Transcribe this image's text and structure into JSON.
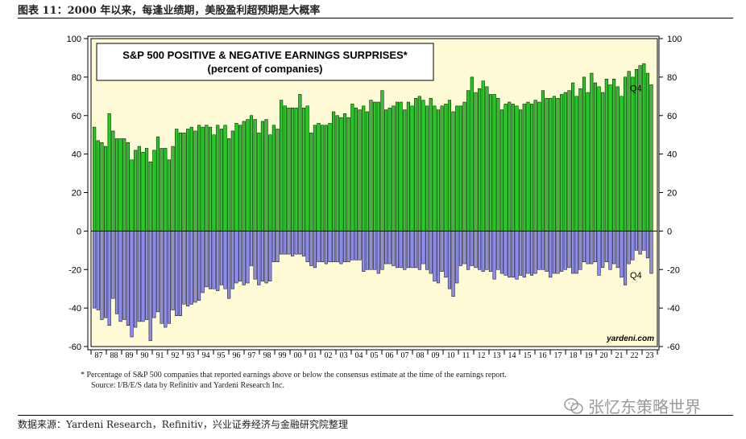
{
  "figure_title": "图表 11：2000 年以来，每逢业绩期，美股盈利超预期是大概率",
  "footnote_1": "*   Percentage of S&P 500 companies that reported earnings above or below the consensus estimate at the time of the earnings report.",
  "footnote_2": "Source: I/B/E/S data by Refinitiv and Yardeni Research Inc.",
  "source_line": "数据来源：Yardeni Research，Refinitiv，兴业证券经济与金融研究院整理",
  "watermark": "张忆东策略世界",
  "colors": {
    "positive": "#22cc22",
    "negative": "#8d8df0",
    "plot_bg": "#fffbd6"
  },
  "chart_data": {
    "type": "bar",
    "title": "S&P 500 POSITIVE & NEGATIVE EARNINGS SURPRISES*",
    "subtitle": "(percent of companies)",
    "brand": "yardeni.com",
    "ylim": [
      -60,
      100
    ],
    "yticks": [
      100,
      80,
      60,
      40,
      20,
      0,
      -20,
      -40,
      -60
    ],
    "x_labels": [
      "87",
      "88",
      "89",
      "90",
      "91",
      "92",
      "93",
      "94",
      "95",
      "96",
      "97",
      "98",
      "99",
      "00",
      "01",
      "02",
      "03",
      "04",
      "05",
      "06",
      "07",
      "08",
      "09",
      "10",
      "11",
      "12",
      "13",
      "14",
      "15",
      "16",
      "17",
      "18",
      "19",
      "20",
      "21",
      "22",
      "23"
    ],
    "annotations": [
      {
        "text": "Q4",
        "series": "positive"
      },
      {
        "text": "Q4",
        "series": "negative"
      }
    ],
    "grid": false,
    "series": [
      {
        "key": "positive",
        "values": [
          54,
          47,
          46,
          44,
          61,
          52,
          48,
          48,
          48,
          46,
          37,
          42,
          44,
          41,
          43,
          36,
          42,
          49,
          43,
          43,
          37,
          44,
          53,
          51,
          51,
          53,
          54,
          52,
          55,
          54,
          55,
          54,
          50,
          55,
          53,
          55,
          48,
          52,
          56,
          55,
          57,
          58,
          60,
          58,
          51,
          57,
          58,
          50,
          55,
          53,
          68,
          65,
          64,
          64,
          64,
          71,
          64,
          65,
          51,
          55,
          56,
          55,
          55,
          56,
          62,
          60,
          59,
          61,
          59,
          66,
          64,
          63,
          65,
          62,
          68,
          67,
          67,
          73,
          63,
          64,
          65,
          67,
          67,
          63,
          67,
          65,
          69,
          70,
          68,
          65,
          69,
          65,
          63,
          65,
          66,
          68,
          62,
          65,
          65,
          67,
          73,
          80,
          72,
          74,
          78,
          75,
          71,
          71,
          69,
          63,
          66,
          67,
          66,
          65,
          63,
          66,
          67,
          66,
          68,
          67,
          73,
          69,
          69,
          70,
          69,
          71,
          72,
          73,
          77,
          70,
          74,
          80,
          72,
          82,
          77,
          75,
          72,
          79,
          76,
          79,
          75,
          70,
          80,
          83,
          80,
          84,
          86,
          87,
          82,
          76
        ]
      },
      {
        "key": "negative",
        "values": [
          -40,
          -41,
          -46,
          -45,
          -49,
          -35,
          -43,
          -47,
          -46,
          -49,
          -55,
          -50,
          -47,
          -47,
          -46,
          -57,
          -45,
          -42,
          -48,
          -50,
          -48,
          -41,
          -44,
          -44,
          -38,
          -39,
          -38,
          -37,
          -36,
          -32,
          -29,
          -30,
          -30,
          -31,
          -28,
          -30,
          -35,
          -30,
          -27,
          -26,
          -28,
          -27,
          -18,
          -25,
          -28,
          -26,
          -27,
          -26,
          -16,
          -16,
          -12,
          -12,
          -12,
          -13,
          -12,
          -12,
          -13,
          -16,
          -18,
          -19,
          -16,
          -16,
          -17,
          -16,
          -16,
          -16,
          -17,
          -16,
          -16,
          -15,
          -15,
          -15,
          -21,
          -20,
          -20,
          -20,
          -22,
          -20,
          -17,
          -17,
          -18,
          -19,
          -19,
          -20,
          -19,
          -19,
          -19,
          -20,
          -17,
          -20,
          -22,
          -26,
          -27,
          -21,
          -24,
          -30,
          -34,
          -27,
          -18,
          -17,
          -20,
          -18,
          -19,
          -20,
          -21,
          -20,
          -21,
          -25,
          -20,
          -22,
          -23,
          -24,
          -24,
          -25,
          -23,
          -24,
          -22,
          -23,
          -22,
          -20,
          -20,
          -21,
          -24,
          -22,
          -22,
          -21,
          -20,
          -19,
          -22,
          -22,
          -20,
          -16,
          -17,
          -17,
          -16,
          -23,
          -19,
          -16,
          -20,
          -17,
          -19,
          -24,
          -28,
          -17,
          -15,
          -10,
          -12,
          -10,
          -14,
          -22
        ]
      }
    ]
  }
}
